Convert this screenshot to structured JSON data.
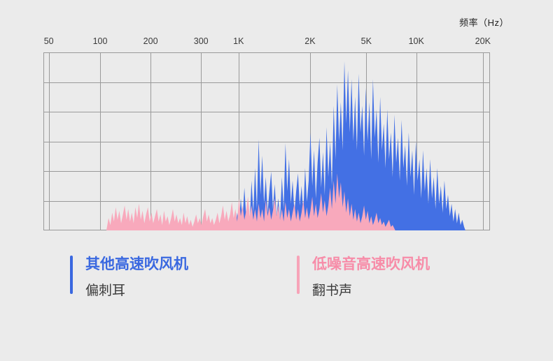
{
  "page": {
    "background": "#ebebeb"
  },
  "chart_data": {
    "type": "area",
    "title": "",
    "x_axis": {
      "title": "频率（Hz）",
      "scale": "log-like",
      "ticks": [
        {
          "label": "50",
          "pos": 0.012
        },
        {
          "label": "100",
          "pos": 0.127
        },
        {
          "label": "200",
          "pos": 0.24
        },
        {
          "label": "300",
          "pos": 0.353
        },
        {
          "label": "1K",
          "pos": 0.437
        },
        {
          "label": "2K",
          "pos": 0.597
        },
        {
          "label": "5K",
          "pos": 0.723
        },
        {
          "label": "10K",
          "pos": 0.835
        },
        {
          "label": "20K",
          "pos": 0.984
        }
      ]
    },
    "y_axis": {
      "title": "",
      "ticks": []
    },
    "grid": {
      "on": true,
      "h_divisions": 6,
      "color": "#9a9a9a"
    },
    "legend_position": "bottom",
    "series": [
      {
        "id": "other-high-speed-dryers",
        "name": "其他高速吹风机",
        "color": "#4370e4",
        "points": [
          [
            0.43,
            0
          ],
          [
            0.434,
            0.1
          ],
          [
            0.438,
            0.03
          ],
          [
            0.442,
            0.18
          ],
          [
            0.446,
            0.06
          ],
          [
            0.45,
            0.24
          ],
          [
            0.454,
            0.08
          ],
          [
            0.458,
            0.14
          ],
          [
            0.462,
            0.05
          ],
          [
            0.466,
            0.28
          ],
          [
            0.47,
            0.1
          ],
          [
            0.474,
            0.35
          ],
          [
            0.478,
            0.12
          ],
          [
            0.482,
            0.51
          ],
          [
            0.486,
            0.2
          ],
          [
            0.49,
            0.42
          ],
          [
            0.494,
            0.15
          ],
          [
            0.498,
            0.3
          ],
          [
            0.502,
            0.1
          ],
          [
            0.506,
            0.22
          ],
          [
            0.51,
            0.33
          ],
          [
            0.514,
            0.12
          ],
          [
            0.518,
            0.26
          ],
          [
            0.522,
            0.08
          ],
          [
            0.526,
            0.18
          ],
          [
            0.53,
            0.06
          ],
          [
            0.534,
            0.3
          ],
          [
            0.538,
            0.12
          ],
          [
            0.542,
            0.49
          ],
          [
            0.546,
            0.22
          ],
          [
            0.55,
            0.4
          ],
          [
            0.554,
            0.15
          ],
          [
            0.558,
            0.28
          ],
          [
            0.562,
            0.1
          ],
          [
            0.566,
            0.22
          ],
          [
            0.57,
            0.32
          ],
          [
            0.574,
            0.14
          ],
          [
            0.578,
            0.25
          ],
          [
            0.582,
            0.1
          ],
          [
            0.586,
            0.35
          ],
          [
            0.59,
            0.16
          ],
          [
            0.594,
            0.28
          ],
          [
            0.598,
            0.55
          ],
          [
            0.602,
            0.25
          ],
          [
            0.606,
            0.45
          ],
          [
            0.61,
            0.18
          ],
          [
            0.614,
            0.38
          ],
          [
            0.618,
            0.52
          ],
          [
            0.622,
            0.24
          ],
          [
            0.626,
            0.44
          ],
          [
            0.63,
            0.2
          ],
          [
            0.634,
            0.58
          ],
          [
            0.638,
            0.3
          ],
          [
            0.642,
            0.5
          ],
          [
            0.646,
            0.25
          ],
          [
            0.65,
            0.7
          ],
          [
            0.654,
            0.4
          ],
          [
            0.658,
            0.82
          ],
          [
            0.662,
            0.5
          ],
          [
            0.666,
            0.72
          ],
          [
            0.67,
            0.45
          ],
          [
            0.674,
            0.95
          ],
          [
            0.678,
            0.6
          ],
          [
            0.682,
            0.9
          ],
          [
            0.686,
            0.55
          ],
          [
            0.69,
            0.85
          ],
          [
            0.694,
            0.5
          ],
          [
            0.698,
            0.75
          ],
          [
            0.702,
            0.45
          ],
          [
            0.706,
            0.88
          ],
          [
            0.71,
            0.55
          ],
          [
            0.714,
            0.7
          ],
          [
            0.718,
            0.42
          ],
          [
            0.722,
            0.8
          ],
          [
            0.726,
            0.5
          ],
          [
            0.73,
            0.72
          ],
          [
            0.734,
            0.4
          ],
          [
            0.738,
            0.85
          ],
          [
            0.742,
            0.52
          ],
          [
            0.746,
            0.68
          ],
          [
            0.75,
            0.38
          ],
          [
            0.754,
            0.75
          ],
          [
            0.758,
            0.45
          ],
          [
            0.762,
            0.6
          ],
          [
            0.766,
            0.35
          ],
          [
            0.77,
            0.68
          ],
          [
            0.774,
            0.4
          ],
          [
            0.778,
            0.55
          ],
          [
            0.782,
            0.3
          ],
          [
            0.786,
            0.65
          ],
          [
            0.79,
            0.38
          ],
          [
            0.794,
            0.52
          ],
          [
            0.798,
            0.28
          ],
          [
            0.802,
            0.62
          ],
          [
            0.806,
            0.35
          ],
          [
            0.81,
            0.48
          ],
          [
            0.814,
            0.25
          ],
          [
            0.818,
            0.55
          ],
          [
            0.822,
            0.3
          ],
          [
            0.826,
            0.45
          ],
          [
            0.83,
            0.2
          ],
          [
            0.834,
            0.5
          ],
          [
            0.838,
            0.28
          ],
          [
            0.842,
            0.4
          ],
          [
            0.846,
            0.18
          ],
          [
            0.85,
            0.45
          ],
          [
            0.854,
            0.22
          ],
          [
            0.858,
            0.35
          ],
          [
            0.862,
            0.15
          ],
          [
            0.866,
            0.4
          ],
          [
            0.87,
            0.18
          ],
          [
            0.874,
            0.3
          ],
          [
            0.878,
            0.12
          ],
          [
            0.882,
            0.35
          ],
          [
            0.886,
            0.15
          ],
          [
            0.89,
            0.25
          ],
          [
            0.894,
            0.1
          ],
          [
            0.898,
            0.28
          ],
          [
            0.902,
            0.12
          ],
          [
            0.906,
            0.2
          ],
          [
            0.91,
            0.08
          ],
          [
            0.914,
            0.15
          ],
          [
            0.918,
            0.05
          ],
          [
            0.922,
            0.12
          ],
          [
            0.926,
            0.04
          ],
          [
            0.93,
            0.1
          ],
          [
            0.934,
            0.03
          ],
          [
            0.938,
            0.06
          ],
          [
            0.942,
            0.02
          ],
          [
            0.945,
            0
          ]
        ]
      },
      {
        "id": "low-noise-high-speed-dryer",
        "name": "低噪音高速吹风机",
        "color": "#f8a9bc",
        "points": [
          [
            0.141,
            0
          ],
          [
            0.146,
            0.07
          ],
          [
            0.15,
            0.03
          ],
          [
            0.154,
            0.1
          ],
          [
            0.158,
            0.05
          ],
          [
            0.162,
            0.13
          ],
          [
            0.166,
            0.06
          ],
          [
            0.17,
            0.11
          ],
          [
            0.174,
            0.04
          ],
          [
            0.178,
            0.09
          ],
          [
            0.182,
            0.14
          ],
          [
            0.186,
            0.06
          ],
          [
            0.19,
            0.12
          ],
          [
            0.194,
            0.05
          ],
          [
            0.198,
            0.1
          ],
          [
            0.202,
            0.04
          ],
          [
            0.206,
            0.13
          ],
          [
            0.21,
            0.07
          ],
          [
            0.214,
            0.15
          ],
          [
            0.218,
            0.06
          ],
          [
            0.222,
            0.11
          ],
          [
            0.226,
            0.04
          ],
          [
            0.23,
            0.09
          ],
          [
            0.234,
            0.13
          ],
          [
            0.238,
            0.05
          ],
          [
            0.242,
            0.1
          ],
          [
            0.246,
            0.04
          ],
          [
            0.25,
            0.08
          ],
          [
            0.254,
            0.12
          ],
          [
            0.258,
            0.05
          ],
          [
            0.262,
            0.09
          ],
          [
            0.266,
            0.03
          ],
          [
            0.27,
            0.11
          ],
          [
            0.274,
            0.05
          ],
          [
            0.278,
            0.08
          ],
          [
            0.282,
            0.03
          ],
          [
            0.286,
            0.07
          ],
          [
            0.29,
            0.12
          ],
          [
            0.294,
            0.05
          ],
          [
            0.298,
            0.09
          ],
          [
            0.302,
            0.04
          ],
          [
            0.306,
            0.07
          ],
          [
            0.31,
            0.03
          ],
          [
            0.314,
            0.1
          ],
          [
            0.318,
            0.04
          ],
          [
            0.322,
            0.08
          ],
          [
            0.326,
            0.03
          ],
          [
            0.33,
            0.06
          ],
          [
            0.334,
            0.02
          ],
          [
            0.338,
            0.05
          ],
          [
            0.342,
            0.09
          ],
          [
            0.346,
            0.04
          ],
          [
            0.35,
            0.07
          ],
          [
            0.354,
            0.03
          ],
          [
            0.358,
            0.08
          ],
          [
            0.362,
            0.12
          ],
          [
            0.366,
            0.05
          ],
          [
            0.37,
            0.09
          ],
          [
            0.374,
            0.04
          ],
          [
            0.378,
            0.07
          ],
          [
            0.382,
            0.03
          ],
          [
            0.386,
            0.06
          ],
          [
            0.39,
            0.1
          ],
          [
            0.394,
            0.04
          ],
          [
            0.398,
            0.08
          ],
          [
            0.402,
            0.14
          ],
          [
            0.406,
            0.06
          ],
          [
            0.41,
            0.11
          ],
          [
            0.414,
            0.05
          ],
          [
            0.418,
            0.09
          ],
          [
            0.422,
            0.16
          ],
          [
            0.426,
            0.07
          ],
          [
            0.43,
            0.12
          ],
          [
            0.434,
            0.05
          ],
          [
            0.438,
            0.18
          ],
          [
            0.442,
            0.08
          ],
          [
            0.446,
            0.14
          ],
          [
            0.45,
            0.06
          ],
          [
            0.454,
            0.11
          ],
          [
            0.458,
            0.19
          ],
          [
            0.462,
            0.08
          ],
          [
            0.466,
            0.14
          ],
          [
            0.47,
            0.06
          ],
          [
            0.474,
            0.12
          ],
          [
            0.478,
            0.05
          ],
          [
            0.482,
            0.15
          ],
          [
            0.486,
            0.07
          ],
          [
            0.49,
            0.12
          ],
          [
            0.494,
            0.05
          ],
          [
            0.498,
            0.17
          ],
          [
            0.502,
            0.08
          ],
          [
            0.506,
            0.13
          ],
          [
            0.51,
            0.06
          ],
          [
            0.514,
            0.11
          ],
          [
            0.518,
            0.18
          ],
          [
            0.522,
            0.08
          ],
          [
            0.526,
            0.14
          ],
          [
            0.53,
            0.06
          ],
          [
            0.534,
            0.12
          ],
          [
            0.538,
            0.05
          ],
          [
            0.542,
            0.16
          ],
          [
            0.546,
            0.07
          ],
          [
            0.55,
            0.12
          ],
          [
            0.554,
            0.05
          ],
          [
            0.558,
            0.1
          ],
          [
            0.562,
            0.15
          ],
          [
            0.566,
            0.06
          ],
          [
            0.57,
            0.12
          ],
          [
            0.574,
            0.05
          ],
          [
            0.578,
            0.1
          ],
          [
            0.582,
            0.17
          ],
          [
            0.586,
            0.07
          ],
          [
            0.59,
            0.13
          ],
          [
            0.594,
            0.06
          ],
          [
            0.598,
            0.11
          ],
          [
            0.602,
            0.19
          ],
          [
            0.606,
            0.08
          ],
          [
            0.61,
            0.15
          ],
          [
            0.614,
            0.07
          ],
          [
            0.618,
            0.12
          ],
          [
            0.622,
            0.21
          ],
          [
            0.626,
            0.1
          ],
          [
            0.63,
            0.17
          ],
          [
            0.634,
            0.08
          ],
          [
            0.638,
            0.14
          ],
          [
            0.642,
            0.24
          ],
          [
            0.646,
            0.12
          ],
          [
            0.65,
            0.28
          ],
          [
            0.654,
            0.15
          ],
          [
            0.658,
            0.32
          ],
          [
            0.662,
            0.18
          ],
          [
            0.666,
            0.27
          ],
          [
            0.67,
            0.13
          ],
          [
            0.674,
            0.22
          ],
          [
            0.678,
            0.1
          ],
          [
            0.682,
            0.18
          ],
          [
            0.686,
            0.08
          ],
          [
            0.69,
            0.15
          ],
          [
            0.694,
            0.06
          ],
          [
            0.698,
            0.12
          ],
          [
            0.702,
            0.05
          ],
          [
            0.706,
            0.1
          ],
          [
            0.71,
            0.04
          ],
          [
            0.714,
            0.08
          ],
          [
            0.718,
            0.14
          ],
          [
            0.722,
            0.06
          ],
          [
            0.726,
            0.11
          ],
          [
            0.73,
            0.04
          ],
          [
            0.734,
            0.08
          ],
          [
            0.738,
            0.03
          ],
          [
            0.742,
            0.06
          ],
          [
            0.746,
            0.1
          ],
          [
            0.75,
            0.04
          ],
          [
            0.754,
            0.07
          ],
          [
            0.758,
            0.03
          ],
          [
            0.762,
            0.05
          ],
          [
            0.766,
            0.02
          ],
          [
            0.77,
            0.04
          ],
          [
            0.774,
            0.06
          ],
          [
            0.778,
            0.02
          ],
          [
            0.782,
            0.03
          ],
          [
            0.788,
            0
          ]
        ]
      }
    ]
  },
  "legend": [
    {
      "title": "其他高速吹风机",
      "subtitle": "偏刺耳",
      "color": "#3a68e0",
      "title_color": "#3a68e0"
    },
    {
      "title": "低噪音高速吹风机",
      "subtitle": "翻书声",
      "color": "#f7a3b8",
      "title_color": "#f78ca8"
    }
  ]
}
